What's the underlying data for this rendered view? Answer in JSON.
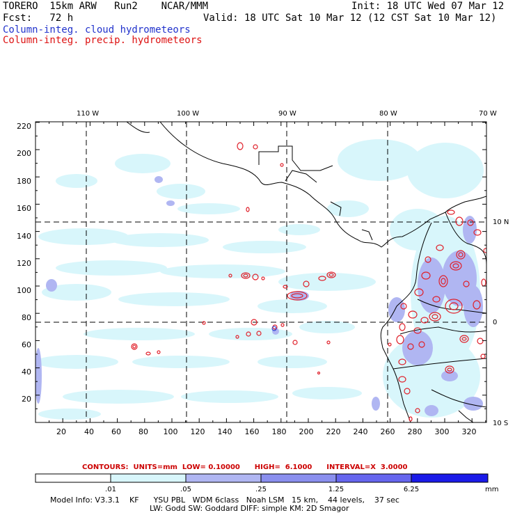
{
  "header": {
    "model": "TORERO  15km ARW   Run2    NCAR/MMM",
    "init": "Init: 18 UTC Wed 07 Mar 12",
    "fcst": "Fcst:   72 h",
    "valid": "Valid: 18 UTC Sat 10 Mar 12 (12 CST Sat 10 Mar 12)",
    "field1": "Column-integ. cloud hydrometeors",
    "field2": "Column-integ. precip. hydrometeors"
  },
  "map": {
    "top_lon_labels": [
      "110 W",
      "100 W",
      "90 W",
      "80 W",
      "70 W"
    ],
    "right_lat_labels": [
      "10 N",
      "0",
      "10 S"
    ],
    "y_ticks": [
      "220",
      "200",
      "180",
      "160",
      "140",
      "120",
      "100",
      "80",
      "60",
      "40",
      "20"
    ],
    "x_ticks": [
      "20",
      "40",
      "60",
      "80",
      "100",
      "120",
      "140",
      "160",
      "180",
      "200",
      "220",
      "240",
      "260",
      "280",
      "300",
      "320"
    ],
    "colors": {
      "cloud_light": "#d8f6fb",
      "cloud_mid": "#b0b6f2",
      "precip": "#e0202a",
      "coast": "#000000"
    }
  },
  "contours": {
    "text": "CONTOURS:  UNITS=mm  LOW= 0.10000      HIGH=  6.1000      INTERVAL=X  3.0000"
  },
  "colorbar": {
    "labels": [
      ".01",
      ".05",
      ".25",
      "1.25",
      "6.25"
    ],
    "unit": "mm",
    "colors": [
      "#ffffff",
      "#d8f6fb",
      "#b0b6f2",
      "#8a8fee",
      "#6666ee",
      "#1a1ae8"
    ]
  },
  "footer": {
    "line1": "Model Info: V3.3.1    KF      YSU PBL   WDM 6class   Noah LSM   15 km,    44 levels,    37 sec",
    "line2": "LW: Godd SW: Goddard DIFF: simple KM: 2D Smagor"
  }
}
